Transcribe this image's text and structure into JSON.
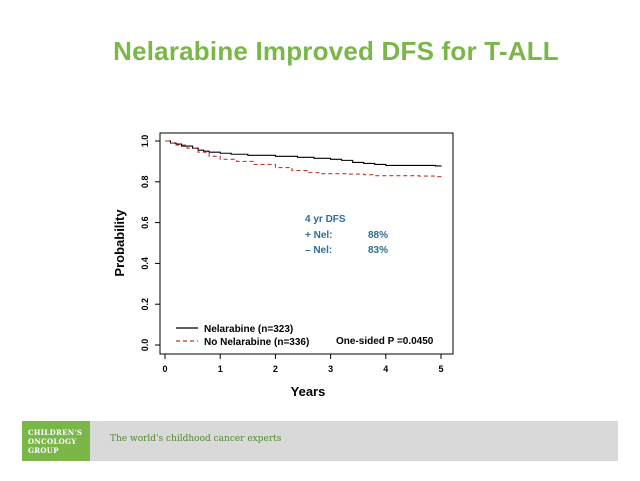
{
  "slide": {
    "title": "Nelarabine Improved DFS for T-ALL"
  },
  "chart_data": {
    "type": "line",
    "xlabel": "Years",
    "ylabel": "Probability",
    "xlim": [
      0,
      5
    ],
    "ylim": [
      0,
      1.0
    ],
    "x_ticks": [
      "0",
      "1",
      "2",
      "3",
      "4",
      "5"
    ],
    "y_ticks": [
      "0.0",
      "0.2",
      "0.4",
      "0.6",
      "0.8",
      "1.0"
    ],
    "series": [
      {
        "name": "Nelarabine (n=323)",
        "color": "#000000",
        "style": "solid",
        "x": [
          0,
          0.1,
          0.2,
          0.3,
          0.5,
          0.6,
          0.7,
          0.8,
          1.0,
          1.2,
          1.5,
          2.0,
          2.4,
          2.7,
          3.0,
          3.2,
          3.4,
          3.6,
          3.8,
          4.0,
          4.3,
          4.6,
          4.9,
          5.0
        ],
        "y": [
          1.0,
          0.99,
          0.985,
          0.975,
          0.965,
          0.955,
          0.95,
          0.945,
          0.94,
          0.935,
          0.93,
          0.925,
          0.92,
          0.915,
          0.91,
          0.905,
          0.895,
          0.89,
          0.885,
          0.88,
          0.88,
          0.88,
          0.878,
          0.875
        ]
      },
      {
        "name": "No Nelarabine (n=336)",
        "color": "#c0392b",
        "style": "dashed",
        "x": [
          0,
          0.1,
          0.2,
          0.4,
          0.6,
          0.8,
          1.0,
          1.3,
          1.6,
          2.0,
          2.3,
          2.6,
          2.8,
          3.0,
          3.3,
          3.6,
          3.8,
          4.0,
          4.3,
          4.6,
          4.9,
          5.0
        ],
        "y": [
          1.0,
          0.99,
          0.98,
          0.965,
          0.945,
          0.925,
          0.91,
          0.9,
          0.885,
          0.87,
          0.855,
          0.845,
          0.84,
          0.84,
          0.838,
          0.835,
          0.83,
          0.83,
          0.83,
          0.828,
          0.825,
          0.822
        ]
      }
    ],
    "annotations": {
      "dfs_header": "4 yr DFS",
      "dfs_rows": [
        {
          "label": "+ Nel:",
          "value": "88%"
        },
        {
          "label": "– Nel:",
          "value": "83%"
        }
      ],
      "p_value": "One-sided P =0.0450"
    },
    "legend_position": "bottom-left",
    "grid": false,
    "colors": {
      "axis": "#000000",
      "annotation": "#2e6e8e"
    }
  },
  "footer": {
    "logo_lines": [
      "CHILDREN'S",
      "ONCOLOGY",
      "GROUP"
    ],
    "tagline": "The world's childhood cancer experts",
    "colors": {
      "brand_green": "#7ab648",
      "bar_gray": "#d9d9d9"
    }
  }
}
